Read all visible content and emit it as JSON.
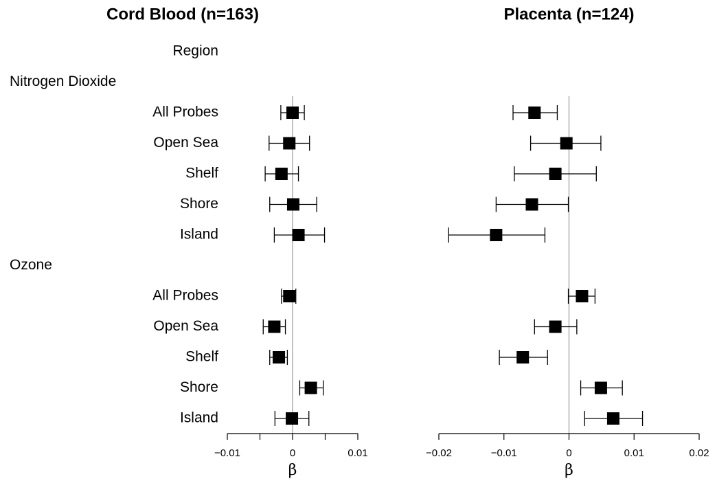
{
  "chart_data": {
    "type": "forest",
    "column_header": "Region",
    "groups": [
      {
        "name": "Nitrogen Dioxide",
        "categories": [
          "All Probes",
          "Open Sea",
          "Shelf",
          "Shore",
          "Island"
        ]
      },
      {
        "name": "Ozone",
        "categories": [
          "All Probes",
          "Open Sea",
          "Shelf",
          "Shore",
          "Island"
        ]
      }
    ],
    "panels": [
      {
        "title": "Cord Blood (n=163)",
        "xlabel": "β",
        "xlim": [
          -0.01,
          0.01
        ],
        "xticks": [
          {
            "value": -0.01,
            "label": "−0.01"
          },
          0,
          0.01
        ],
        "minor_xticks": [
          -0.005,
          0.005
        ],
        "refline": 0,
        "groups": [
          {
            "values": [
              0.0,
              -0.0005,
              -0.0017,
              0.0001,
              0.0009
            ],
            "lower": [
              -0.0018,
              -0.0036,
              -0.0042,
              -0.0035,
              -0.0028
            ],
            "upper": [
              0.0018,
              0.0026,
              0.0009,
              0.0037,
              0.0049
            ]
          },
          {
            "values": [
              -0.0005,
              -0.0028,
              -0.0021,
              0.0028,
              -0.0001
            ],
            "lower": [
              -0.0017,
              -0.0045,
              -0.0035,
              0.0011,
              -0.0027
            ],
            "upper": [
              0.0005,
              -0.0011,
              -0.0008,
              0.0047,
              0.0025
            ]
          }
        ]
      },
      {
        "title": "Placenta (n=124)",
        "xlabel": "β",
        "xlim": [
          -0.02,
          0.02
        ],
        "xticks": [
          {
            "value": -0.02,
            "label": "−0.02"
          },
          {
            "value": -0.01,
            "label": "−0.01"
          },
          0,
          0.01,
          0.02
        ],
        "minor_xticks": [],
        "refline": 0,
        "groups": [
          {
            "values": [
              -0.0053,
              -0.0004,
              -0.0021,
              -0.0057,
              -0.0112
            ],
            "lower": [
              -0.0086,
              -0.0059,
              -0.0084,
              -0.0112,
              -0.0185
            ],
            "upper": [
              -0.0018,
              0.0049,
              0.0042,
              -0.0001,
              -0.0037
            ]
          },
          {
            "values": [
              0.002,
              -0.0021,
              -0.0071,
              0.0049,
              0.0068
            ],
            "lower": [
              -0.0001,
              -0.0053,
              -0.0107,
              0.0018,
              0.0024
            ],
            "upper": [
              0.004,
              0.0012,
              -0.0033,
              0.0082,
              0.0113
            ]
          }
        ]
      }
    ]
  }
}
